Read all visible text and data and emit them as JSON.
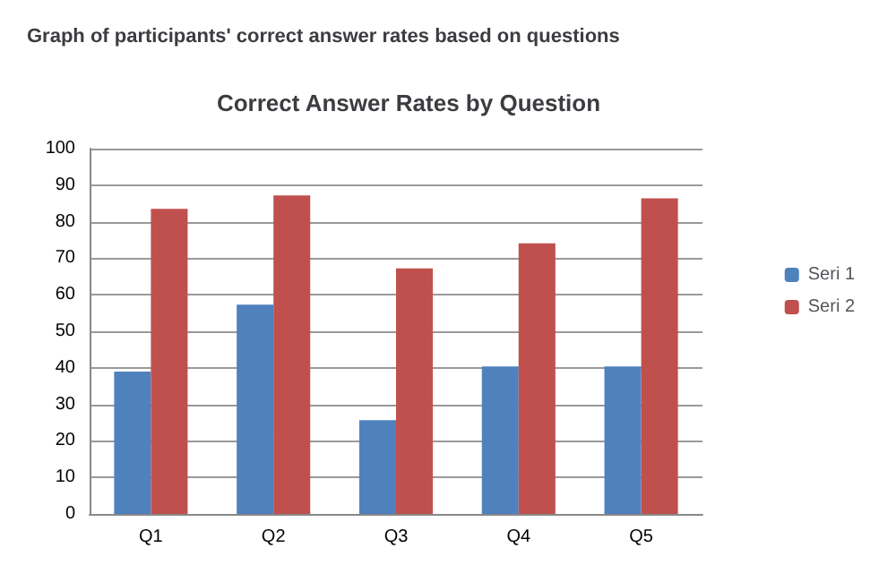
{
  "chart_data": {
    "type": "bar",
    "title": "Correct Answer Rates by Question",
    "annotations": [
      "Graph of participants' correct answer rates based on questions"
    ],
    "categories": [
      "Q1",
      "Q2",
      "Q3",
      "Q4",
      "Q5"
    ],
    "series": [
      {
        "name": "Seri 1",
        "color": "#4f81bd",
        "values": [
          39,
          57.3,
          25.7,
          40.4,
          40.4
        ]
      },
      {
        "name": "Seri 2",
        "color": "#c0504d",
        "values": [
          83.5,
          87.2,
          67.2,
          74.1,
          86.4
        ]
      }
    ],
    "ylim": [
      0,
      100
    ],
    "yticks": [
      0,
      10,
      20,
      30,
      40,
      50,
      60,
      70,
      80,
      90,
      100
    ],
    "grid": "y",
    "legend": "right"
  }
}
